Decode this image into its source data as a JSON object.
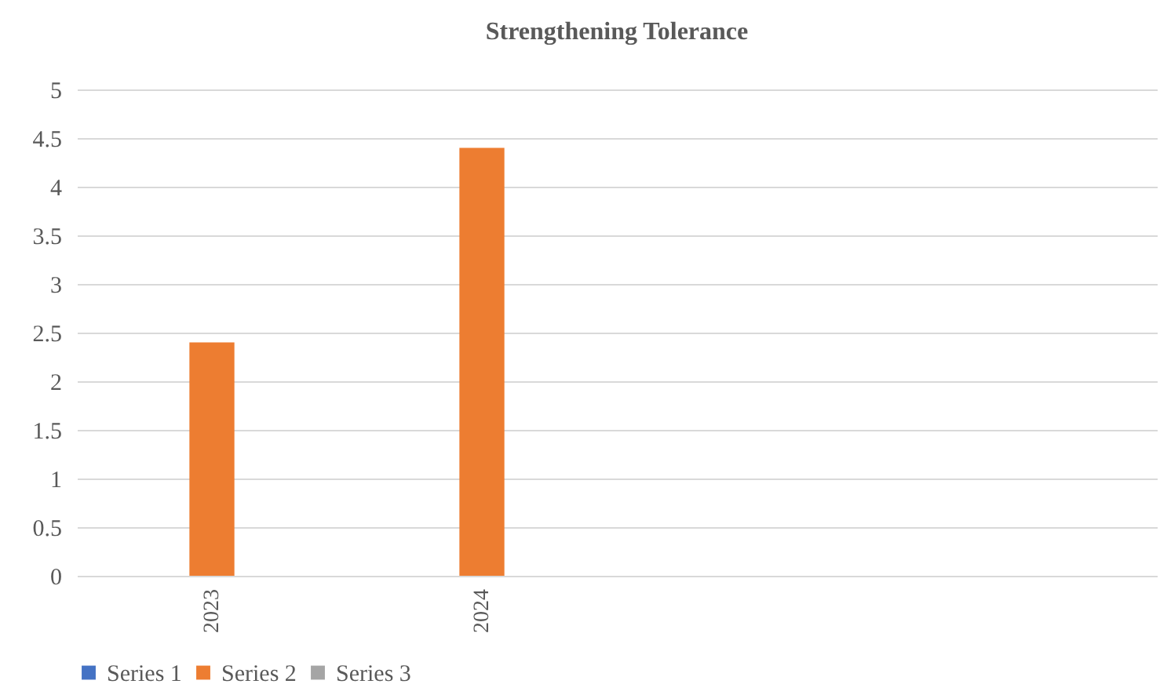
{
  "chart_data": {
    "type": "bar",
    "title": "Strengthening Tolerance",
    "categories": [
      "2023",
      "2024",
      null,
      null
    ],
    "series": [
      {
        "name": "Series 1",
        "color": "#4472c4",
        "values": [
          null,
          null,
          null,
          null
        ]
      },
      {
        "name": "Series 2",
        "color": "#ed7d31",
        "values": [
          2.4,
          4.4,
          null,
          null
        ]
      },
      {
        "name": "Series 3",
        "color": "#a5a5a5",
        "values": [
          null,
          null,
          null,
          null
        ]
      }
    ],
    "ylim": [
      0,
      5
    ],
    "yticks": [
      0,
      0.5,
      1,
      1.5,
      2,
      2.5,
      3,
      3.5,
      4,
      4.5,
      5
    ],
    "grid": "y",
    "legend": "bottom"
  }
}
